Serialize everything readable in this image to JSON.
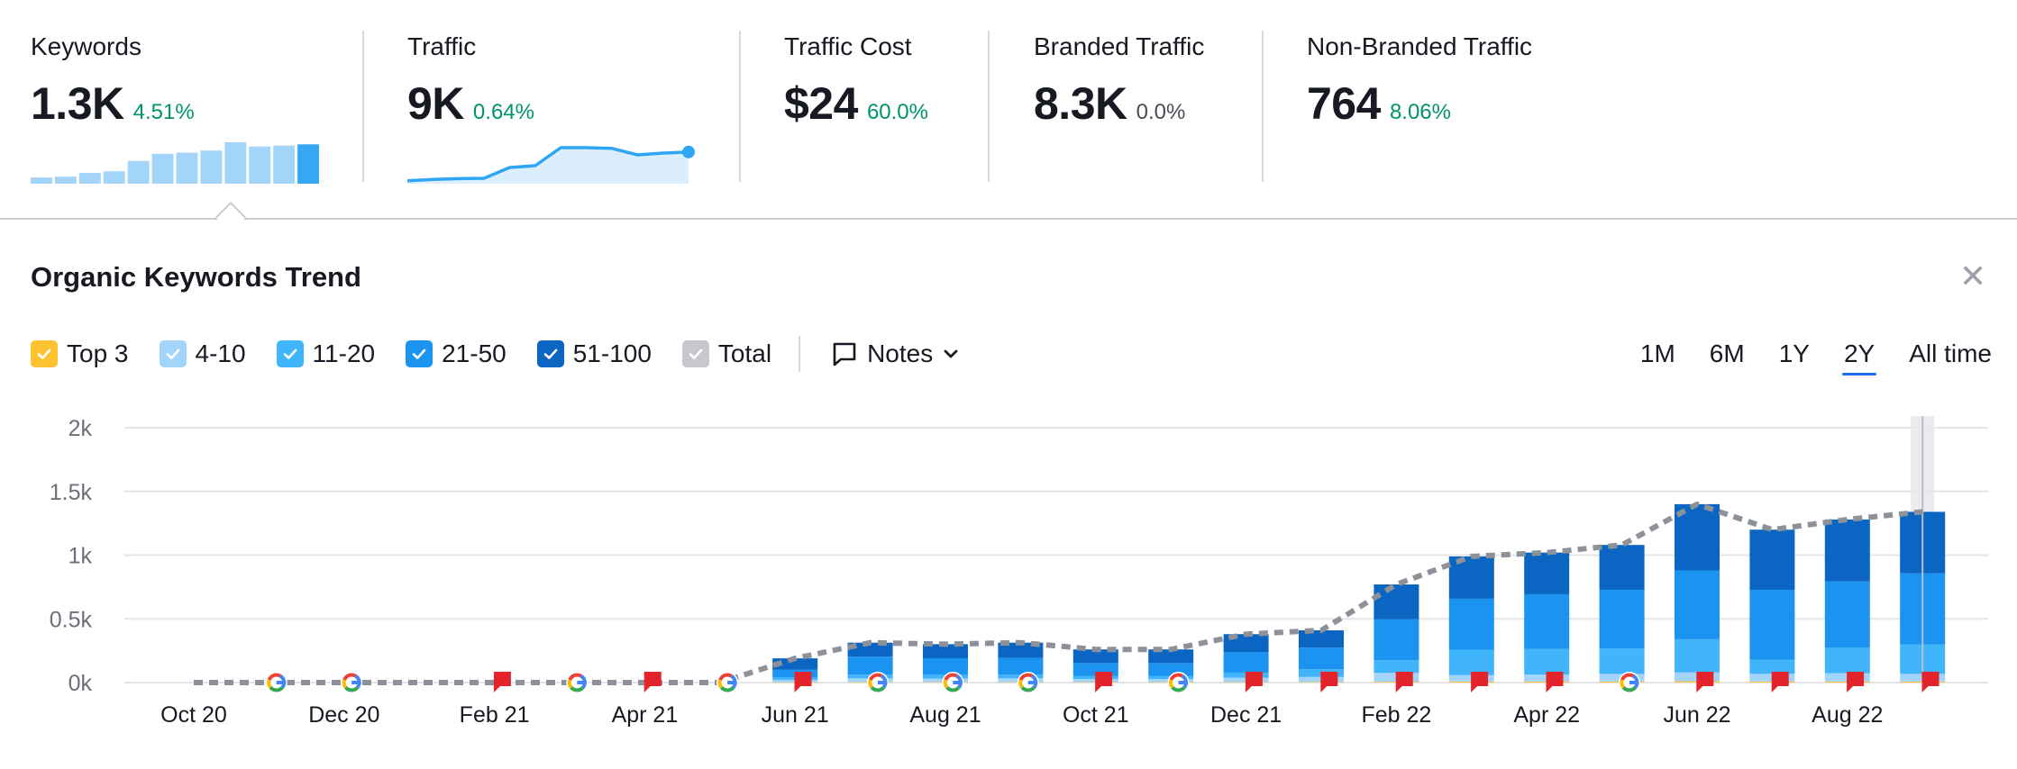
{
  "metrics": [
    {
      "label": "Keywords",
      "value": "1.3K",
      "delta": "4.51%",
      "delta_color": "green"
    },
    {
      "label": "Traffic",
      "value": "9K",
      "delta": "0.64%",
      "delta_color": "green"
    },
    {
      "label": "Traffic Cost",
      "value": "$24",
      "delta": "60.0%",
      "delta_color": "green"
    },
    {
      "label": "Branded Traffic",
      "value": "8.3K",
      "delta": "0.0%",
      "delta_color": "gray"
    },
    {
      "label": "Non-Branded Traffic",
      "value": "764",
      "delta": "8.06%",
      "delta_color": "green"
    }
  ],
  "mini_charts": {
    "keywords_bars": [
      0.15,
      0.17,
      0.26,
      0.3,
      0.55,
      0.72,
      0.75,
      0.8,
      1.0,
      0.9,
      0.92,
      0.95
    ],
    "traffic_line": [
      0.08,
      0.12,
      0.14,
      0.15,
      0.45,
      0.5,
      1.0,
      1.0,
      0.98,
      0.8,
      0.85,
      0.88
    ]
  },
  "section": {
    "title": "Organic Keywords Trend",
    "close_icon": "close-icon"
  },
  "legend": [
    {
      "label": "Top 3",
      "color": "#ffc331"
    },
    {
      "label": "4-10",
      "color": "#a3d5fb"
    },
    {
      "label": "11-20",
      "color": "#41b5fb"
    },
    {
      "label": "21-50",
      "color": "#1a94f0"
    },
    {
      "label": "51-100",
      "color": "#0a66c2"
    },
    {
      "label": "Total",
      "color": "#c6c8cd"
    }
  ],
  "notes_label": "Notes",
  "ranges": [
    {
      "label": "1M",
      "active": false
    },
    {
      "label": "6M",
      "active": false
    },
    {
      "label": "1Y",
      "active": false
    },
    {
      "label": "2Y",
      "active": true
    },
    {
      "label": "All time",
      "active": false
    }
  ],
  "chart_data": {
    "type": "bar",
    "stacked": true,
    "x_tick_labels": [
      "Oct 20",
      "Dec 20",
      "Feb 21",
      "Apr 21",
      "Jun 21",
      "Aug 21",
      "Oct 21",
      "Dec 21",
      "Feb 22",
      "Apr 22",
      "Jun 22",
      "Aug 22"
    ],
    "y_tick_labels": [
      "0k",
      "0.5k",
      "1k",
      "1.5k",
      "2k"
    ],
    "ylim": [
      0,
      2000
    ],
    "months": [
      "Oct 20",
      "Nov 20",
      "Dec 20",
      "Jan 21",
      "Feb 21",
      "Mar 21",
      "Apr 21",
      "May 21",
      "Jun 21",
      "Jul 21",
      "Aug 21",
      "Sep 21",
      "Oct 21",
      "Nov 21",
      "Dec 21",
      "Jan 22",
      "Feb 22",
      "Mar 22",
      "Apr 22",
      "May 22",
      "Jun 22",
      "Jul 22",
      "Aug 22",
      "Sep 22"
    ],
    "series": [
      {
        "name": "Top 3",
        "color": "#ffc331",
        "values": [
          0,
          0,
          0,
          0,
          0,
          0,
          0,
          0,
          2,
          3,
          3,
          3,
          3,
          3,
          3,
          4,
          6,
          8,
          8,
          8,
          10,
          8,
          8,
          8
        ]
      },
      {
        "name": "4-10",
        "color": "#a3d5fb",
        "values": [
          0,
          0,
          0,
          0,
          0,
          0,
          0,
          0,
          18,
          30,
          28,
          30,
          25,
          25,
          35,
          40,
          70,
          50,
          55,
          60,
          70,
          60,
          65,
          60
        ]
      },
      {
        "name": "11-20",
        "color": "#41b5fb",
        "values": [
          0,
          0,
          0,
          0,
          0,
          0,
          0,
          0,
          20,
          30,
          30,
          30,
          25,
          25,
          40,
          60,
          100,
          200,
          200,
          200,
          260,
          110,
          200,
          230
        ]
      },
      {
        "name": "21-50",
        "color": "#1a94f0",
        "values": [
          0,
          0,
          0,
          0,
          0,
          0,
          0,
          0,
          60,
          140,
          130,
          130,
          100,
          100,
          160,
          170,
          320,
          400,
          430,
          460,
          540,
          550,
          520,
          560
        ]
      },
      {
        "name": "51-100",
        "color": "#0a66c2",
        "values": [
          0,
          0,
          0,
          0,
          0,
          0,
          0,
          0,
          90,
          110,
          110,
          120,
          107,
          107,
          142,
          136,
          274,
          332,
          327,
          352,
          520,
          472,
          487,
          482
        ]
      }
    ],
    "total": {
      "name": "Total",
      "color": "#8d9199",
      "values": [
        0,
        0,
        0,
        0,
        0,
        0,
        0,
        0,
        190,
        313,
        301,
        313,
        260,
        260,
        380,
        410,
        770,
        990,
        1020,
        1080,
        1400,
        1200,
        1280,
        1340
      ]
    },
    "markers": [
      "none",
      "google",
      "google",
      "none",
      "flag",
      "google",
      "flag",
      "google",
      "flag",
      "google",
      "google",
      "google",
      "flag",
      "google",
      "flag",
      "flag",
      "flag",
      "flag",
      "flag",
      "google",
      "flag",
      "flag",
      "flag",
      "flag"
    ],
    "legend_position": "top-left",
    "grid": true
  }
}
